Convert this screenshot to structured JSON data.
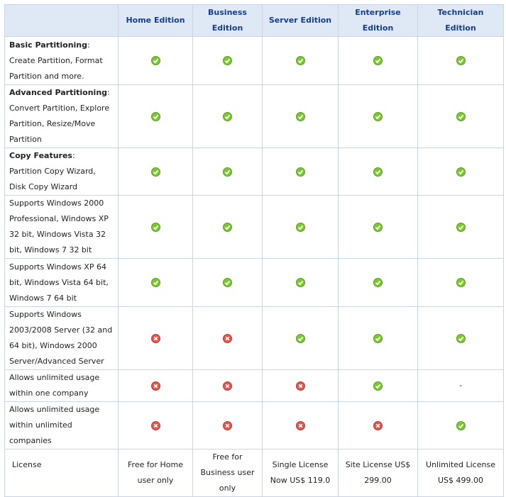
{
  "table": {
    "header": [
      "Home Edition",
      "Business Edition",
      "Server Edition",
      "Enterprise Edition",
      "Technician Edition"
    ],
    "rows": [
      {
        "title": "Basic Partitioning",
        "text": "Create Partition, Format Partition and more.",
        "cells": [
          true,
          true,
          true,
          true,
          true
        ]
      },
      {
        "title": "Advanced Partitioning",
        "text": "Convert Partition, Explore Partition, Resize/Move Partition",
        "cells": [
          true,
          true,
          true,
          true,
          true
        ]
      },
      {
        "title": "Copy Features",
        "text": "Partition Copy Wizard, Disk Copy Wizard",
        "cells": [
          true,
          true,
          true,
          true,
          true
        ]
      },
      {
        "text": "Supports Windows 2000 Professional, Windows XP 32 bit, Windows Vista 32 bit, Windows 7 32 bit",
        "cells": [
          true,
          true,
          true,
          true,
          true
        ]
      },
      {
        "text": "Supports Windows XP 64 bit, Windows Vista 64 bit, Windows 7 64 bit",
        "cells": [
          true,
          true,
          true,
          true,
          true
        ]
      },
      {
        "text": "Supports Windows 2003/2008 Server (32 and 64 bit), Windows 2000 Server/Advanced Server",
        "cells": [
          false,
          false,
          true,
          true,
          true
        ]
      },
      {
        "text": "Allows unlimited usage within one company",
        "cells": [
          false,
          false,
          false,
          true,
          "-"
        ]
      },
      {
        "text": "Allows unlimited usage within unlimited companies",
        "cells": [
          false,
          false,
          false,
          false,
          true
        ]
      }
    ],
    "license": {
      "label": "License",
      "cells": [
        "Free for Home user only",
        "Free for Business user only",
        "Single License Now US$ 119.0",
        "Site License US$ 299.00",
        "Unlimited License US$ 499.00"
      ]
    }
  }
}
